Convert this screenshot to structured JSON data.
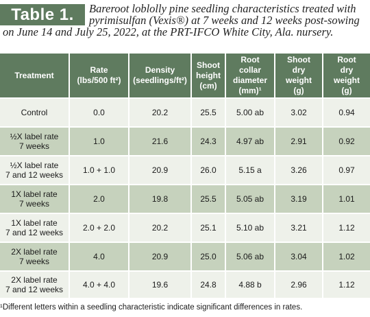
{
  "title": {
    "badge": "Table 1.",
    "caption": "Bareroot loblolly pine seedling characteristics treated with pyrimisulfan (Vexis®) at 7 weeks and 12 weeks post-sowing on June 14 and July 25, 2022, at the PRT-IFCO White City, Ala. nursery."
  },
  "table": {
    "headers": [
      "Treatment",
      "Rate (lbs/500 ft²)",
      "Density (seedlings/ft²)",
      "Shoot height (cm)",
      "Root collar diameter (mm)¹",
      "Shoot dry weight (g)",
      "Root dry weight (g)"
    ],
    "rows": [
      [
        "Control",
        "0.0",
        "20.2",
        "25.5",
        "5.00 ab",
        "3.02",
        "0.94"
      ],
      [
        "½X label rate 7 weeks",
        "1.0",
        "21.6",
        "24.3",
        "4.97 ab",
        "2.91",
        "0.92"
      ],
      [
        "½X label rate 7 and 12 weeks",
        "1.0 + 1.0",
        "20.9",
        "26.0",
        "5.15 a",
        "3.26",
        "0.97"
      ],
      [
        "1X label rate 7 weeks",
        "2.0",
        "19.8",
        "25.5",
        "5.05 ab",
        "3.19",
        "1.01"
      ],
      [
        "1X label rate 7 and 12 weeks",
        "2.0 + 2.0",
        "20.2",
        "25.1",
        "5.10 ab",
        "3.21",
        "1.12"
      ],
      [
        "2X label rate 7 weeks",
        "4.0",
        "20.9",
        "25.0",
        "5.06 ab",
        "3.04",
        "1.02"
      ],
      [
        "2X label rate 7 and 12 weeks",
        "4.0 + 4.0",
        "19.6",
        "24.8",
        "4.88 b",
        "2.96",
        "1.12"
      ]
    ]
  },
  "footnote": "¹Different letters within a seedling characteristic indicate significant differences in rates.",
  "colors": {
    "header_green": "#5f7b5f",
    "row_light": "#eef1ea",
    "row_dark": "#c6d2bd"
  }
}
